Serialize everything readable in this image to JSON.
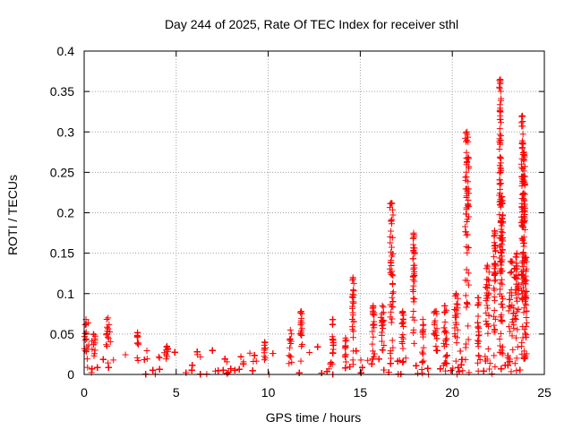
{
  "chart_data": {
    "type": "scatter",
    "title": "Day 244 of 2025, Rate Of TEC Index for receiver sthl",
    "xlabel": "GPS time / hours",
    "ylabel": "ROTI / TECUs",
    "xlim": [
      0,
      25
    ],
    "ylim": [
      0,
      0.4
    ],
    "x_ticks": [
      0,
      5,
      10,
      15,
      20,
      25
    ],
    "x_tick_labels": [
      "0",
      "5",
      "10",
      "15",
      "20",
      "25"
    ],
    "y_ticks": [
      0,
      0.05,
      0.1,
      0.15,
      0.2,
      0.25,
      0.3,
      0.35,
      0.4
    ],
    "y_tick_labels": [
      "0",
      "0.05",
      "0.1",
      "0.15",
      "0.2",
      "0.25",
      "0.3",
      "0.35",
      "0.4"
    ],
    "grid": true,
    "marker": "+",
    "series_color": "#ff0000",
    "background_band": {
      "x_start": 0,
      "x_end": 24,
      "y_min": 0,
      "y_max": 0.03
    },
    "clusters": [
      {
        "x": 0.1,
        "peak": 0.068,
        "width": 0.15
      },
      {
        "x": 0.5,
        "peak": 0.05,
        "width": 0.1
      },
      {
        "x": 1.3,
        "peak": 0.07,
        "width": 0.15
      },
      {
        "x": 2.9,
        "peak": 0.052,
        "width": 0.05
      },
      {
        "x": 4.5,
        "peak": 0.035,
        "width": 0.05
      },
      {
        "x": 9.8,
        "peak": 0.04,
        "width": 0.05
      },
      {
        "x": 11.2,
        "peak": 0.055,
        "width": 0.1
      },
      {
        "x": 11.8,
        "peak": 0.078,
        "width": 0.05
      },
      {
        "x": 13.5,
        "peak": 0.068,
        "width": 0.05
      },
      {
        "x": 14.2,
        "peak": 0.045,
        "width": 0.05
      },
      {
        "x": 14.6,
        "peak": 0.12,
        "width": 0.05
      },
      {
        "x": 15.7,
        "peak": 0.085,
        "width": 0.05
      },
      {
        "x": 16.2,
        "peak": 0.085,
        "width": 0.1
      },
      {
        "x": 16.7,
        "peak": 0.212,
        "width": 0.1
      },
      {
        "x": 17.3,
        "peak": 0.078,
        "width": 0.05
      },
      {
        "x": 17.9,
        "peak": 0.175,
        "width": 0.05
      },
      {
        "x": 18.4,
        "peak": 0.068,
        "width": 0.05
      },
      {
        "x": 19.1,
        "peak": 0.078,
        "width": 0.1
      },
      {
        "x": 19.6,
        "peak": 0.085,
        "width": 0.1
      },
      {
        "x": 20.2,
        "peak": 0.1,
        "width": 0.1
      },
      {
        "x": 20.8,
        "peak": 0.3,
        "width": 0.1
      },
      {
        "x": 21.4,
        "peak": 0.095,
        "width": 0.05
      },
      {
        "x": 21.9,
        "peak": 0.135,
        "width": 0.1
      },
      {
        "x": 22.3,
        "peak": 0.178,
        "width": 0.05
      },
      {
        "x": 22.6,
        "peak": 0.365,
        "width": 0.05
      },
      {
        "x": 22.7,
        "peak": 0.22,
        "width": 0.05
      },
      {
        "x": 23.2,
        "peak": 0.14,
        "width": 0.2
      },
      {
        "x": 23.5,
        "peak": 0.15,
        "width": 0.1
      },
      {
        "x": 23.8,
        "peak": 0.32,
        "width": 0.05
      },
      {
        "x": 23.9,
        "peak": 0.275,
        "width": 0.05
      },
      {
        "x": 24.0,
        "peak": 0.145,
        "width": 0.05
      }
    ]
  }
}
